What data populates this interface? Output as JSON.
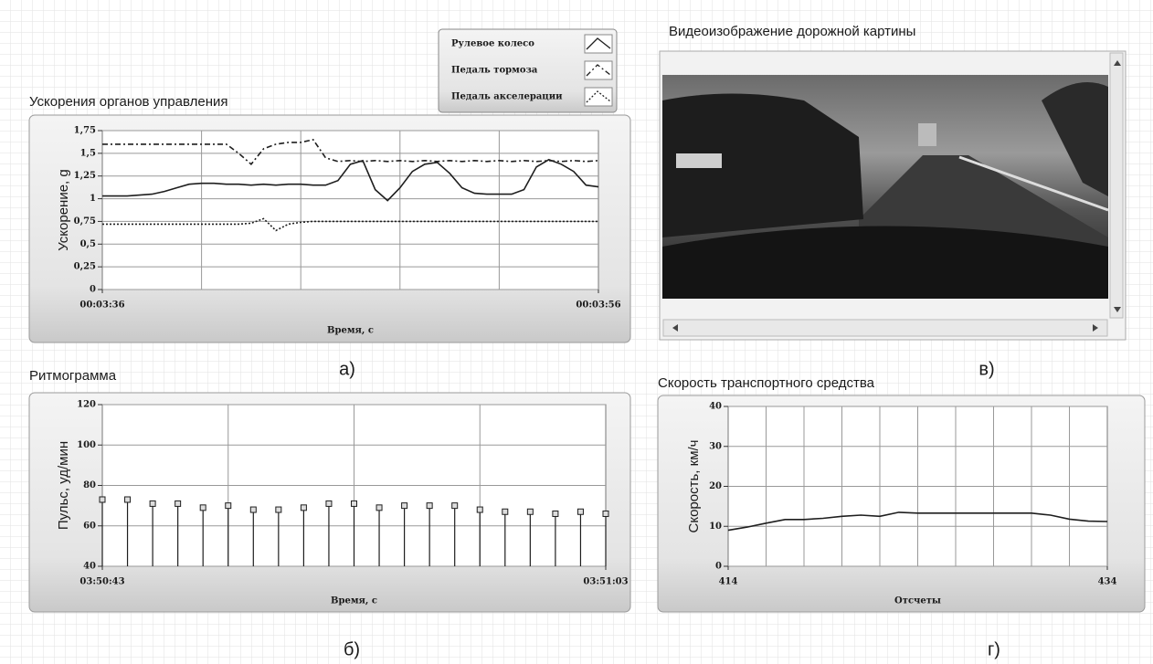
{
  "chart_data": [
    {
      "type": "line",
      "title": "Ускорения органов управления",
      "ylabel": "Ускорение, g",
      "xlabel": "Время, с",
      "xlim": [
        216,
        236
      ],
      "xticks": [
        {
          "value": 216,
          "label": "00:03:36"
        },
        {
          "value": 236,
          "label": "00:03:56"
        }
      ],
      "ylim": [
        0,
        1.75
      ],
      "yticks": [
        0,
        {
          "value": 0.25,
          "label": "0,25"
        },
        {
          "value": 0.5,
          "label": "0,5"
        },
        {
          "value": 0.75,
          "label": "0,75"
        },
        1,
        {
          "value": 1.25,
          "label": "1,25"
        },
        {
          "value": 1.5,
          "label": "1,5"
        },
        {
          "value": 1.75,
          "label": "1,75"
        }
      ],
      "grid": true,
      "legend": "above-right",
      "x": [
        216,
        216.5,
        217,
        217.5,
        218,
        218.5,
        219,
        219.5,
        220,
        220.5,
        221,
        221.5,
        222,
        222.5,
        223,
        223.5,
        224,
        224.5,
        225,
        225.5,
        226,
        226.5,
        227,
        227.5,
        228,
        228.5,
        229,
        229.5,
        230,
        230.5,
        231,
        231.5,
        232,
        232.5,
        233,
        233.5,
        234,
        234.5,
        235,
        235.5,
        236
      ],
      "series": [
        {
          "name": "Рулевое колесо",
          "color": "#1e1e1e",
          "linestyle": "solid",
          "values": [
            1.03,
            1.03,
            1.03,
            1.04,
            1.05,
            1.08,
            1.12,
            1.16,
            1.17,
            1.17,
            1.16,
            1.16,
            1.15,
            1.16,
            1.15,
            1.16,
            1.16,
            1.15,
            1.15,
            1.2,
            1.38,
            1.42,
            1.1,
            0.98,
            1.12,
            1.3,
            1.38,
            1.4,
            1.28,
            1.12,
            1.06,
            1.05,
            1.05,
            1.05,
            1.1,
            1.35,
            1.43,
            1.38,
            1.3,
            1.15,
            1.13
          ]
        },
        {
          "name": "Педаль тормоза",
          "color": "#1e1e1e",
          "linestyle": "dashdot",
          "values": [
            1.6,
            1.6,
            1.6,
            1.6,
            1.6,
            1.6,
            1.6,
            1.6,
            1.6,
            1.6,
            1.6,
            1.5,
            1.38,
            1.55,
            1.6,
            1.62,
            1.62,
            1.65,
            1.45,
            1.41,
            1.42,
            1.41,
            1.42,
            1.41,
            1.42,
            1.41,
            1.42,
            1.41,
            1.42,
            1.41,
            1.42,
            1.41,
            1.42,
            1.41,
            1.42,
            1.41,
            1.42,
            1.41,
            1.42,
            1.41,
            1.42
          ]
        },
        {
          "name": "Педаль акселерации",
          "color": "#1e1e1e",
          "linestyle": "dotted",
          "values": [
            0.72,
            0.72,
            0.72,
            0.72,
            0.72,
            0.72,
            0.72,
            0.72,
            0.72,
            0.72,
            0.72,
            0.72,
            0.73,
            0.78,
            0.65,
            0.72,
            0.74,
            0.75,
            0.75,
            0.75,
            0.75,
            0.75,
            0.75,
            0.75,
            0.75,
            0.75,
            0.75,
            0.75,
            0.75,
            0.75,
            0.75,
            0.75,
            0.75,
            0.75,
            0.75,
            0.75,
            0.75,
            0.75,
            0.75,
            0.75,
            0.75
          ]
        }
      ]
    },
    {
      "type": "stem",
      "title": "Ритмограмма",
      "ylabel": "Пульс, уд/мин",
      "xlabel": "Время, с",
      "xlim": [
        13843,
        13863
      ],
      "xticks": [
        {
          "value": 13843,
          "label": "03:50:43"
        },
        {
          "value": 13863,
          "label": "03:51:03"
        }
      ],
      "ylim": [
        40,
        120
      ],
      "yticks": [
        40,
        60,
        80,
        100,
        120
      ],
      "grid": true,
      "x": [
        13843,
        13844,
        13845,
        13846,
        13847,
        13848,
        13849,
        13850,
        13851,
        13852,
        13853,
        13854,
        13855,
        13856,
        13857,
        13858,
        13859,
        13860,
        13861,
        13862,
        13863
      ],
      "color": "#1e1e1e",
      "values": [
        73,
        73,
        71,
        71,
        69,
        70,
        68,
        68,
        69,
        71,
        71,
        69,
        70,
        70,
        70,
        68,
        67,
        67,
        66,
        67,
        66
      ]
    },
    {
      "type": "line",
      "title": "Скорость транспортного средства",
      "ylabel": "Скорость, км/ч",
      "xlabel": "Отсчеты",
      "xlim": [
        414,
        434
      ],
      "xticks": [
        414,
        434
      ],
      "ylim": [
        0,
        40
      ],
      "yticks": [
        0,
        10,
        20,
        30,
        40
      ],
      "grid": true,
      "x": [
        414,
        415,
        416,
        417,
        418,
        419,
        420,
        421,
        422,
        423,
        424,
        425,
        426,
        427,
        428,
        429,
        430,
        431,
        432,
        433,
        434
      ],
      "series": [
        {
          "color": "#1e1e1e",
          "linestyle": "solid",
          "values": [
            9,
            9.8,
            10.8,
            11.7,
            11.7,
            12,
            12.5,
            12.8,
            12.5,
            13.5,
            13.3,
            13.3,
            13.3,
            13.3,
            13.3,
            13.3,
            13.3,
            12.8,
            11.8,
            11.3,
            11.2
          ]
        }
      ]
    }
  ],
  "video": {
    "title": "Видеоизображение дорожной картины"
  },
  "panel_labels": [
    "а)",
    "б)",
    "в)",
    "г)"
  ]
}
